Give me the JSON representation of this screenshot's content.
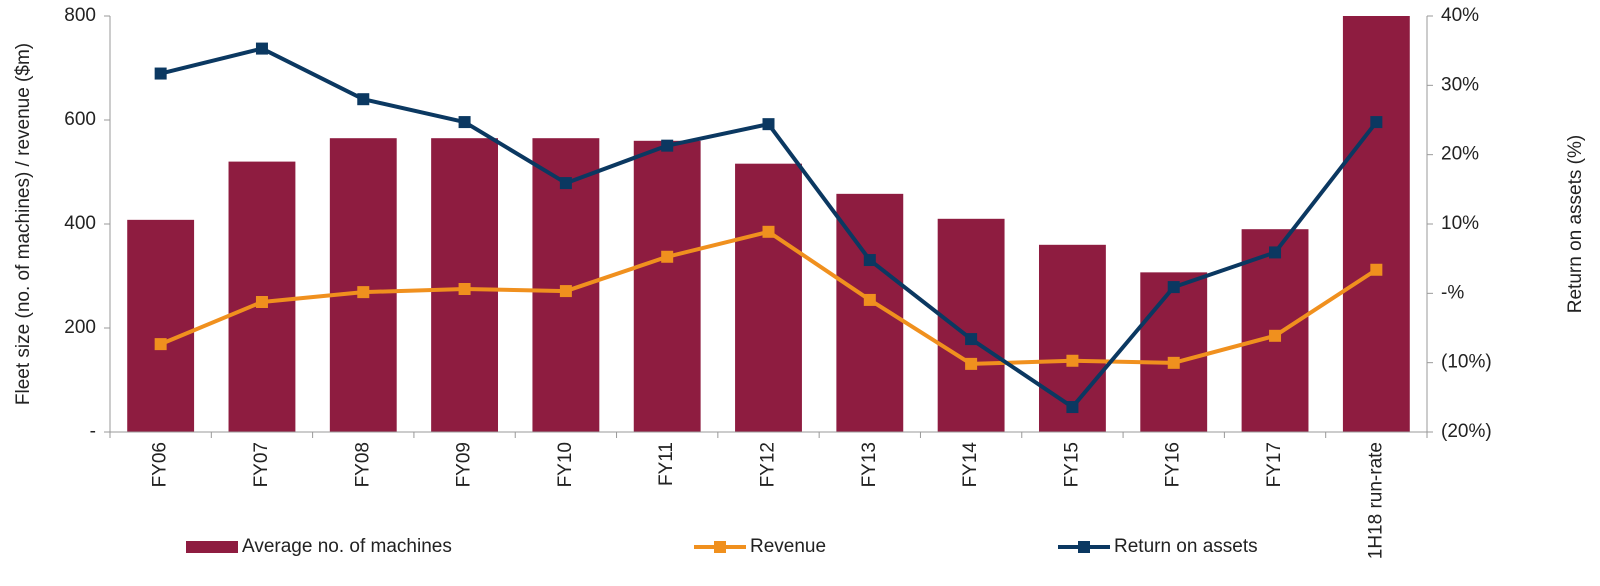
{
  "chart_data": {
    "type": "bar-line",
    "categories": [
      "FY06",
      "FY07",
      "FY08",
      "FY09",
      "FY10",
      "FY11",
      "FY12",
      "FY13",
      "FY14",
      "FY15",
      "FY16",
      "FY17",
      "1H18 run-rate"
    ],
    "series": [
      {
        "name": "Average no. of machines",
        "type": "bar",
        "color": "#8e1c40",
        "values": [
          408,
          520,
          565,
          565,
          565,
          560,
          516,
          458,
          410,
          360,
          307,
          390,
          800
        ]
      },
      {
        "name": "Revenue",
        "type": "line",
        "color": "#f0901e",
        "values": [
          169,
          250,
          269,
          275,
          271,
          337,
          385,
          254,
          131,
          137,
          133,
          185,
          312
        ]
      },
      {
        "name": "Return on assets",
        "type": "line",
        "axis": "y2",
        "color": "#0b3861",
        "values": [
          31.7,
          35.3,
          28,
          24.7,
          15.9,
          21.3,
          24.4,
          4.8,
          -6.6,
          -16.4,
          0.9,
          5.9,
          24.7
        ]
      }
    ],
    "ylabel": "Fleet size (no. of machines) / revenue ($m)",
    "y2label": "Return on assets (%)",
    "ylim": [
      0,
      800
    ],
    "yticks": [
      {
        "value": 0,
        "label": "-"
      },
      200,
      400,
      600,
      800
    ],
    "y2lim": [
      -20,
      40
    ],
    "y2ticks": [
      {
        "value": -20,
        "label": "(20%)"
      },
      {
        "value": -10,
        "label": "(10%)"
      },
      {
        "value": 0,
        "label": "-%"
      },
      {
        "value": 10,
        "label": "10%"
      },
      {
        "value": 20,
        "label": "20%"
      },
      {
        "value": 30,
        "label": "30%"
      },
      {
        "value": 40,
        "label": "40%"
      }
    ],
    "legend": "bottom"
  }
}
